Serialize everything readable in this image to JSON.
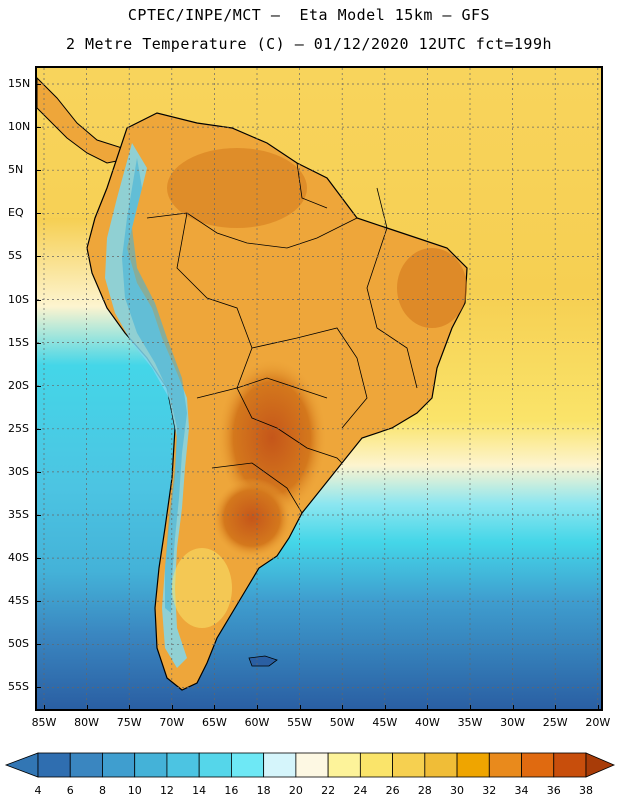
{
  "header": {
    "line1": "CPTEC/INPE/MCT –  Eta Model 15km – GFS",
    "line2": "2 Metre Temperature (C) – 01/12/2020 12UTC fct=199h"
  },
  "axes": {
    "lat_labels": [
      "15N",
      "10N",
      "5N",
      "EQ",
      "5S",
      "10S",
      "15S",
      "20S",
      "25S",
      "30S",
      "35S",
      "40S",
      "45S",
      "50S",
      "55S"
    ],
    "lon_labels": [
      "85W",
      "80W",
      "75W",
      "70W",
      "65W",
      "60W",
      "55W",
      "50W",
      "45W",
      "40W",
      "35W",
      "30W",
      "25W",
      "20W"
    ]
  },
  "colorbar": {
    "labels": [
      "4",
      "6",
      "8",
      "10",
      "12",
      "14",
      "16",
      "18",
      "20",
      "22",
      "24",
      "26",
      "28",
      "30",
      "32",
      "34",
      "36",
      "38"
    ],
    "colors": [
      "#2f6eb0",
      "#3a86c0",
      "#3f9ecf",
      "#44b2d8",
      "#4cc4e2",
      "#55d6ea",
      "#6ee8f5",
      "#d5f5fb",
      "#fdf8e3",
      "#fdf39a",
      "#fae46a",
      "#f6d050",
      "#f0bd37",
      "#efa500",
      "#e98a1c",
      "#e06a10",
      "#c84e0c"
    ],
    "end_low": "#3276b4",
    "end_high": "#a83c08"
  },
  "palette": {
    "ocean_deep": "#2a5fa3",
    "ocean_mid": "#3f9ecf",
    "ocean_cyan": "#44d6e8",
    "ocean_light": "#8ce6f0",
    "cream": "#fdf4cf",
    "warm_yellow": "#f8d45c",
    "land_orange": "#eea63a",
    "land_dark": "#d4781c",
    "land_hot": "#c5561a",
    "andes": "#7fd7ef"
  }
}
